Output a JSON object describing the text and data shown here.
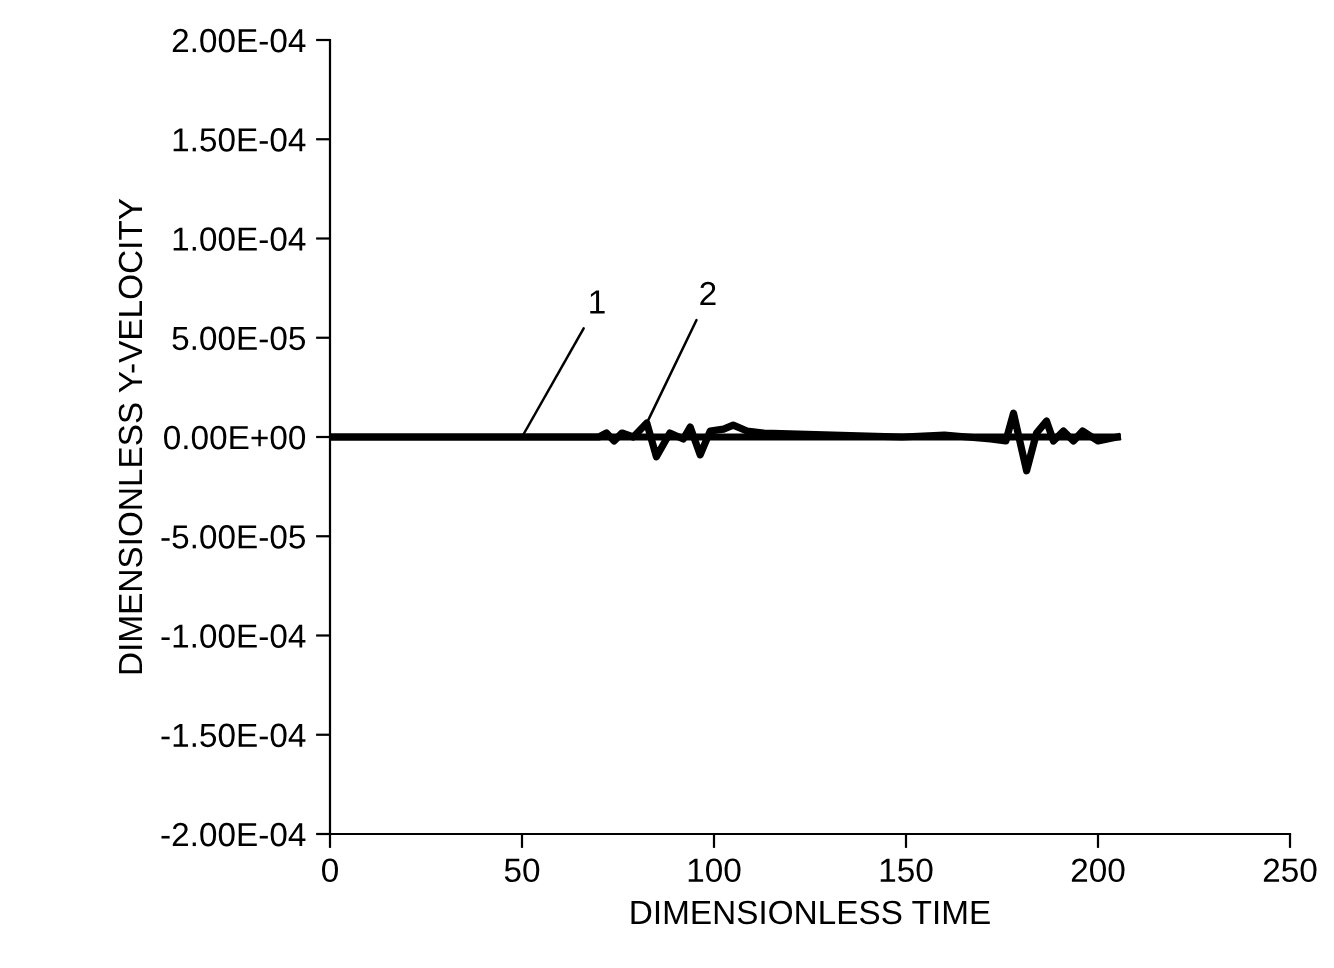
{
  "chart_data": {
    "type": "line",
    "xlabel": "DIMENSIONLESS TIME",
    "ylabel": "DIMENSIONLESS Y-VELOCITY",
    "series": [
      {
        "color": "#000000",
        "x": [
          0,
          50,
          100,
          150,
          205
        ],
        "values": [
          0,
          0,
          0,
          0,
          0
        ]
      },
      {
        "color": "#000000",
        "x": [
          0,
          70,
          72,
          74,
          76,
          79,
          82.5,
          85,
          88.5,
          92,
          93.8,
          96.4,
          99,
          102.5,
          105,
          108.6,
          113,
          149,
          160,
          172,
          176,
          178,
          181.4,
          184,
          186.6,
          188.4,
          191,
          193.6,
          196,
          200,
          205
        ],
        "values": [
          0,
          0,
          2e-06,
          -2e-06,
          2e-06,
          0,
          7e-06,
          -1e-05,
          2e-06,
          -1e-06,
          5e-06,
          -9e-06,
          3e-06,
          4e-06,
          6e-06,
          3e-06,
          2e-06,
          0,
          1e-06,
          -1e-06,
          -2e-06,
          1.2e-05,
          -1.7e-05,
          2e-06,
          8e-06,
          -2e-06,
          3e-06,
          -2e-06,
          3e-06,
          -2e-06,
          0
        ]
      }
    ],
    "annotations": [
      {
        "text": "1",
        "x": 50,
        "y": 0
      },
      {
        "text": "2",
        "x": 82.5,
        "y": 7e-06
      }
    ],
    "xlim": [
      0,
      250
    ],
    "xticks": [
      0,
      50,
      100,
      150,
      200,
      250
    ],
    "ylim": [
      -0.0002,
      0.0002
    ],
    "yticks": [
      {
        "value": -0.0002,
        "label": "-2.00E-04"
      },
      {
        "value": -0.00015,
        "label": "-1.50E-04"
      },
      {
        "value": -0.0001,
        "label": "-1.00E-04"
      },
      {
        "value": -5e-05,
        "label": "-5.00E-05"
      },
      {
        "value": 0,
        "label": "0.00E+00"
      },
      {
        "value": 5e-05,
        "label": "5.00E-05"
      },
      {
        "value": 0.0001,
        "label": "1.00E-04"
      },
      {
        "value": 0.00015,
        "label": "1.50E-04"
      },
      {
        "value": 0.0002,
        "label": "2.00E-04"
      }
    ],
    "grid": false,
    "legend": false,
    "marker": "none",
    "line_style": "solid"
  }
}
